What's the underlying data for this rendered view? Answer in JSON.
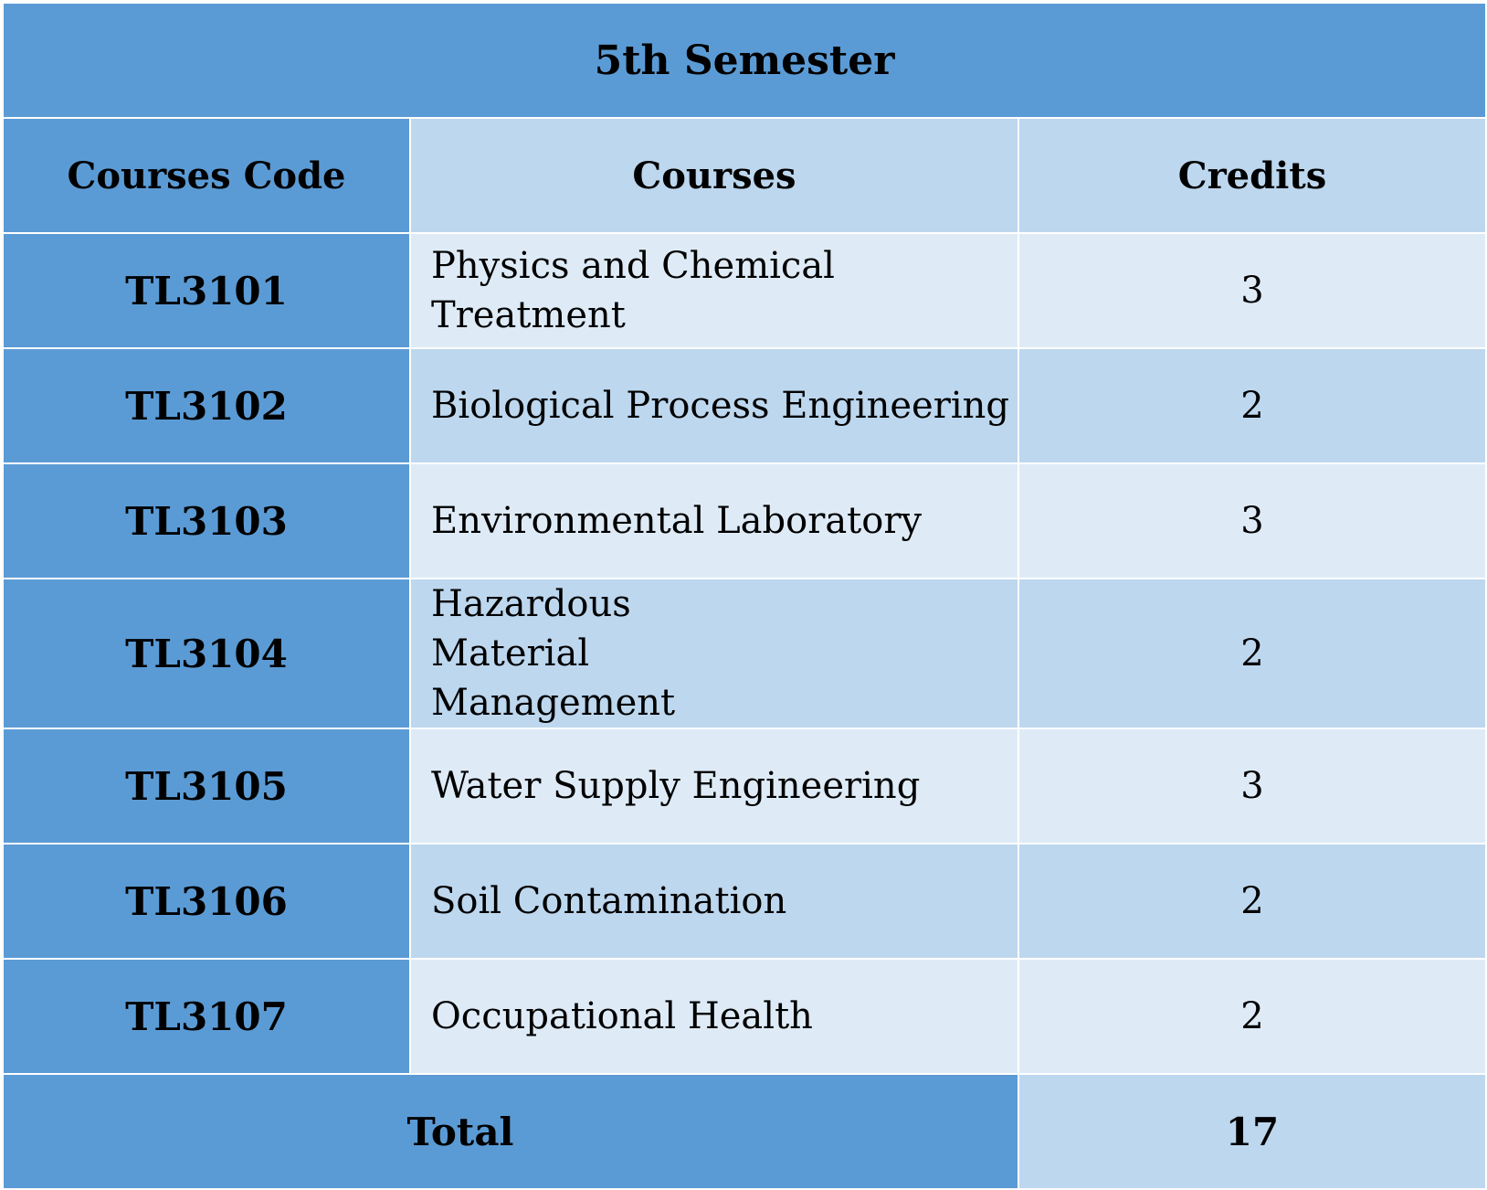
{
  "table": {
    "title": "5th Semester",
    "headers": {
      "code": "Courses Code",
      "course": "Courses",
      "credits": "Credits"
    },
    "rows": [
      {
        "code": "TL3101",
        "course": "Physics and Chemical Treatment",
        "credits": "3"
      },
      {
        "code": "TL3102",
        "course": "Biological Process Engineering",
        "credits": "2"
      },
      {
        "code": "TL3103",
        "course": "Environmental Laboratory",
        "credits": "3"
      },
      {
        "code": "TL3104",
        "course": "Hazardous Material Management",
        "credits": "2"
      },
      {
        "code": "TL3105",
        "course": "Water Supply Engineering",
        "credits": "3"
      },
      {
        "code": "TL3106",
        "course": "Soil Contamination",
        "credits": "2"
      },
      {
        "code": "TL3107",
        "course": "Occupational Health",
        "credits": "2"
      }
    ],
    "total_label": "Total",
    "total_value": "17"
  },
  "colors": {
    "dark": "#5b9bd5",
    "mid": "#bdd7ee",
    "light": "#deebf7"
  }
}
